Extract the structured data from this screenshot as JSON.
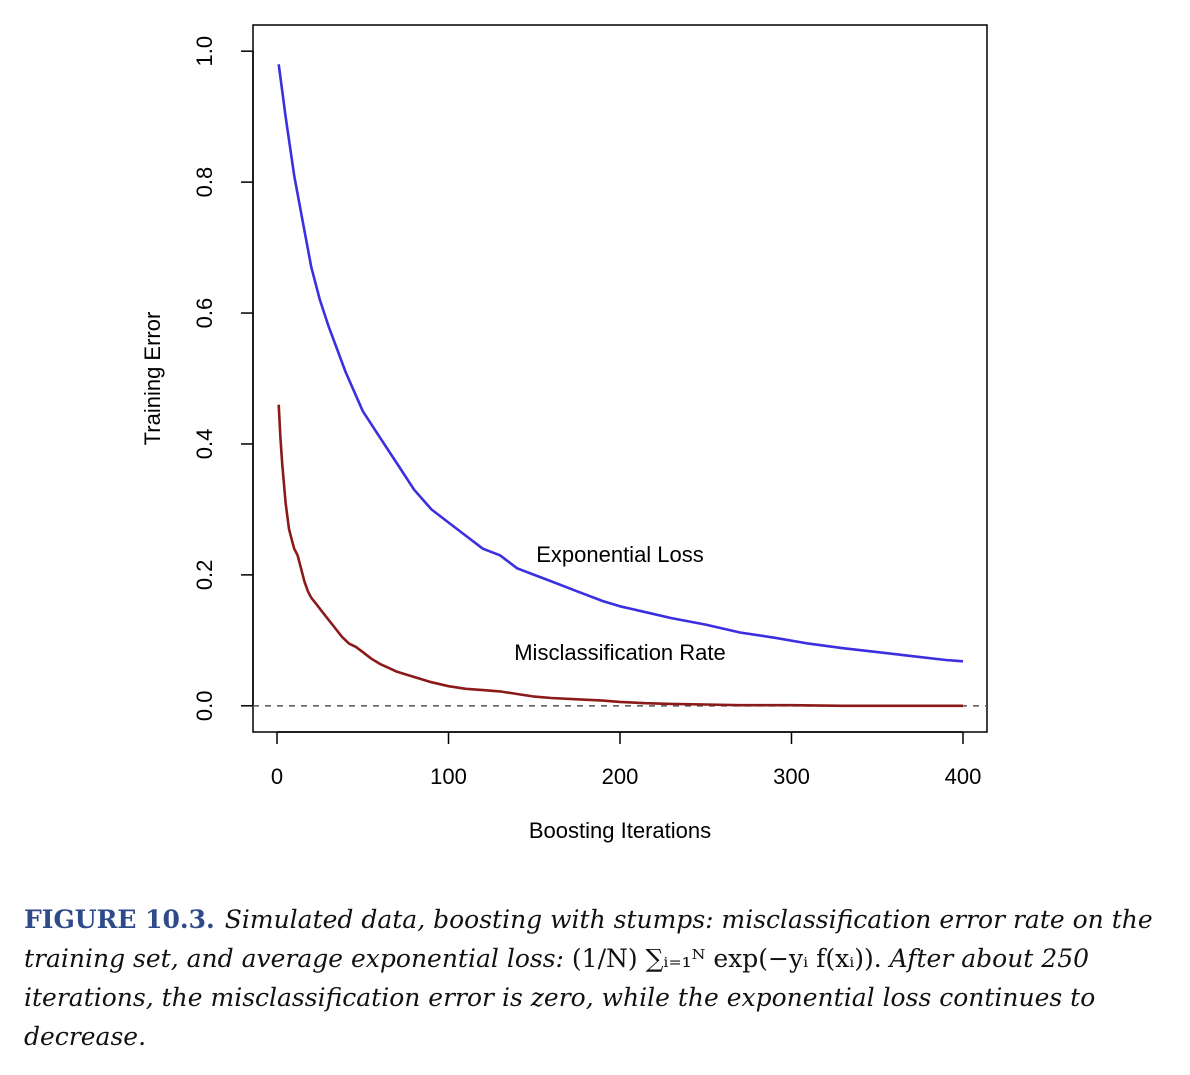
{
  "chart_data": {
    "type": "line",
    "title": "",
    "xlabel": "Boosting Iterations",
    "ylabel": "Training Error",
    "xlim": [
      -14,
      414
    ],
    "ylim": [
      -0.04,
      1.04
    ],
    "x_ticks": [
      0,
      100,
      200,
      300,
      400
    ],
    "y_ticks": [
      0.0,
      0.2,
      0.4,
      0.6,
      0.8,
      1.0
    ],
    "x_tick_labels": [
      "0",
      "100",
      "200",
      "300",
      "400"
    ],
    "y_tick_labels": [
      "0.0",
      "0.2",
      "0.4",
      "0.6",
      "0.8",
      "1.0"
    ],
    "grid": false,
    "reference_line": {
      "y": 0.0,
      "style": "dashed",
      "color": "#555555"
    },
    "series": [
      {
        "name": "Exponential Loss",
        "color": "#3b2fe0",
        "label_at": [
          200,
          0.22
        ],
        "points": [
          [
            1,
            0.98
          ],
          [
            5,
            0.9
          ],
          [
            10,
            0.81
          ],
          [
            15,
            0.74
          ],
          [
            20,
            0.67
          ],
          [
            25,
            0.62
          ],
          [
            30,
            0.58
          ],
          [
            40,
            0.51
          ],
          [
            50,
            0.45
          ],
          [
            60,
            0.41
          ],
          [
            70,
            0.37
          ],
          [
            80,
            0.33
          ],
          [
            90,
            0.3
          ],
          [
            100,
            0.28
          ],
          [
            110,
            0.26
          ],
          [
            120,
            0.24
          ],
          [
            130,
            0.23
          ],
          [
            140,
            0.21
          ],
          [
            150,
            0.2
          ],
          [
            160,
            0.19
          ],
          [
            175,
            0.175
          ],
          [
            190,
            0.16
          ],
          [
            200,
            0.152
          ],
          [
            215,
            0.143
          ],
          [
            230,
            0.134
          ],
          [
            250,
            0.124
          ],
          [
            270,
            0.112
          ],
          [
            290,
            0.104
          ],
          [
            310,
            0.095
          ],
          [
            330,
            0.088
          ],
          [
            350,
            0.082
          ],
          [
            370,
            0.076
          ],
          [
            390,
            0.07
          ],
          [
            400,
            0.068
          ]
        ]
      },
      {
        "name": "Misclassification Rate",
        "color": "#8b1a1a",
        "label_at": [
          200,
          0.07
        ],
        "points": [
          [
            1,
            0.46
          ],
          [
            2,
            0.41
          ],
          [
            3,
            0.37
          ],
          [
            4,
            0.34
          ],
          [
            5,
            0.31
          ],
          [
            6,
            0.29
          ],
          [
            7,
            0.27
          ],
          [
            8,
            0.26
          ],
          [
            9,
            0.25
          ],
          [
            10,
            0.24
          ],
          [
            11,
            0.235
          ],
          [
            12,
            0.23
          ],
          [
            13,
            0.22
          ],
          [
            14,
            0.21
          ],
          [
            16,
            0.19
          ],
          [
            18,
            0.175
          ],
          [
            20,
            0.165
          ],
          [
            23,
            0.155
          ],
          [
            26,
            0.145
          ],
          [
            29,
            0.135
          ],
          [
            32,
            0.125
          ],
          [
            35,
            0.115
          ],
          [
            38,
            0.105
          ],
          [
            42,
            0.095
          ],
          [
            46,
            0.09
          ],
          [
            50,
            0.082
          ],
          [
            55,
            0.072
          ],
          [
            60,
            0.064
          ],
          [
            65,
            0.058
          ],
          [
            70,
            0.052
          ],
          [
            75,
            0.048
          ],
          [
            80,
            0.044
          ],
          [
            90,
            0.036
          ],
          [
            100,
            0.03
          ],
          [
            110,
            0.026
          ],
          [
            120,
            0.024
          ],
          [
            130,
            0.022
          ],
          [
            140,
            0.018
          ],
          [
            150,
            0.014
          ],
          [
            160,
            0.012
          ],
          [
            175,
            0.01
          ],
          [
            190,
            0.008
          ],
          [
            200,
            0.006
          ],
          [
            215,
            0.004
          ],
          [
            230,
            0.003
          ],
          [
            250,
            0.002
          ],
          [
            270,
            0.001
          ],
          [
            300,
            0.001
          ],
          [
            330,
            0.0
          ],
          [
            360,
            0.0
          ],
          [
            400,
            0.0
          ]
        ]
      }
    ]
  },
  "caption": {
    "label": "FIGURE 10.3.",
    "line1": "Simulated data, boosting with stumps: misclassification error",
    "line2": "rate on the training set, and average exponential loss:",
    "formula": "(1/N) ∑ᵢ₌₁ᴺ exp(−yᵢ f(xᵢ)).",
    "line3": "After about 250 iterations, the misclassification error is zero, while the exponential",
    "line4": "loss continues to decrease."
  }
}
